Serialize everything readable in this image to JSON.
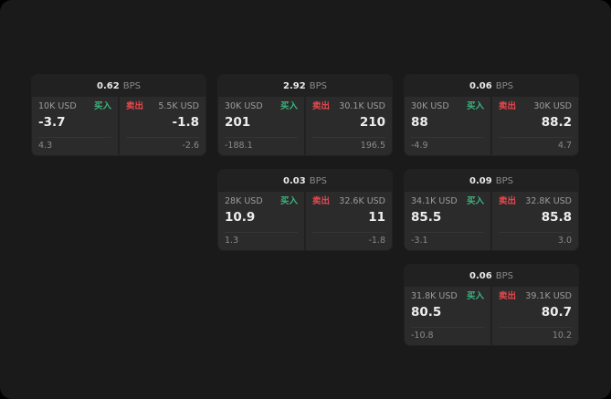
{
  "labels": {
    "bps": "BPS",
    "buy": "买入",
    "sell": "卖出"
  },
  "colors": {
    "background": "#000000",
    "surface": "#1a1a1a",
    "card": "#212121",
    "panel": "#2b2b2b",
    "buy_accent": "#3eb37f",
    "sell_accent": "#e5484d"
  },
  "cards": [
    {
      "bps": "0.62",
      "buy": {
        "notional": "10K USD",
        "price": "-3.7",
        "delta": "4.3"
      },
      "sell": {
        "notional": "5.5K USD",
        "price": "-1.8",
        "delta": "-2.6"
      }
    },
    {
      "bps": "2.92",
      "buy": {
        "notional": "30K USD",
        "price": "201",
        "delta": "-188.1"
      },
      "sell": {
        "notional": "30.1K USD",
        "price": "210",
        "delta": "196.5"
      }
    },
    {
      "bps": "0.06",
      "buy": {
        "notional": "30K USD",
        "price": "88",
        "delta": "-4.9"
      },
      "sell": {
        "notional": "30K USD",
        "price": "88.2",
        "delta": "4.7"
      }
    },
    {
      "bps": "0.03",
      "buy": {
        "notional": "28K USD",
        "price": "10.9",
        "delta": "1.3"
      },
      "sell": {
        "notional": "32.6K USD",
        "price": "11",
        "delta": "-1.8"
      }
    },
    {
      "bps": "0.09",
      "buy": {
        "notional": "34.1K USD",
        "price": "85.5",
        "delta": "-3.1"
      },
      "sell": {
        "notional": "32.8K USD",
        "price": "85.8",
        "delta": "3.0"
      }
    },
    {
      "bps": "0.06",
      "buy": {
        "notional": "31.8K USD",
        "price": "80.5",
        "delta": "-10.8"
      },
      "sell": {
        "notional": "39.1K USD",
        "price": "80.7",
        "delta": "10.2"
      }
    }
  ]
}
